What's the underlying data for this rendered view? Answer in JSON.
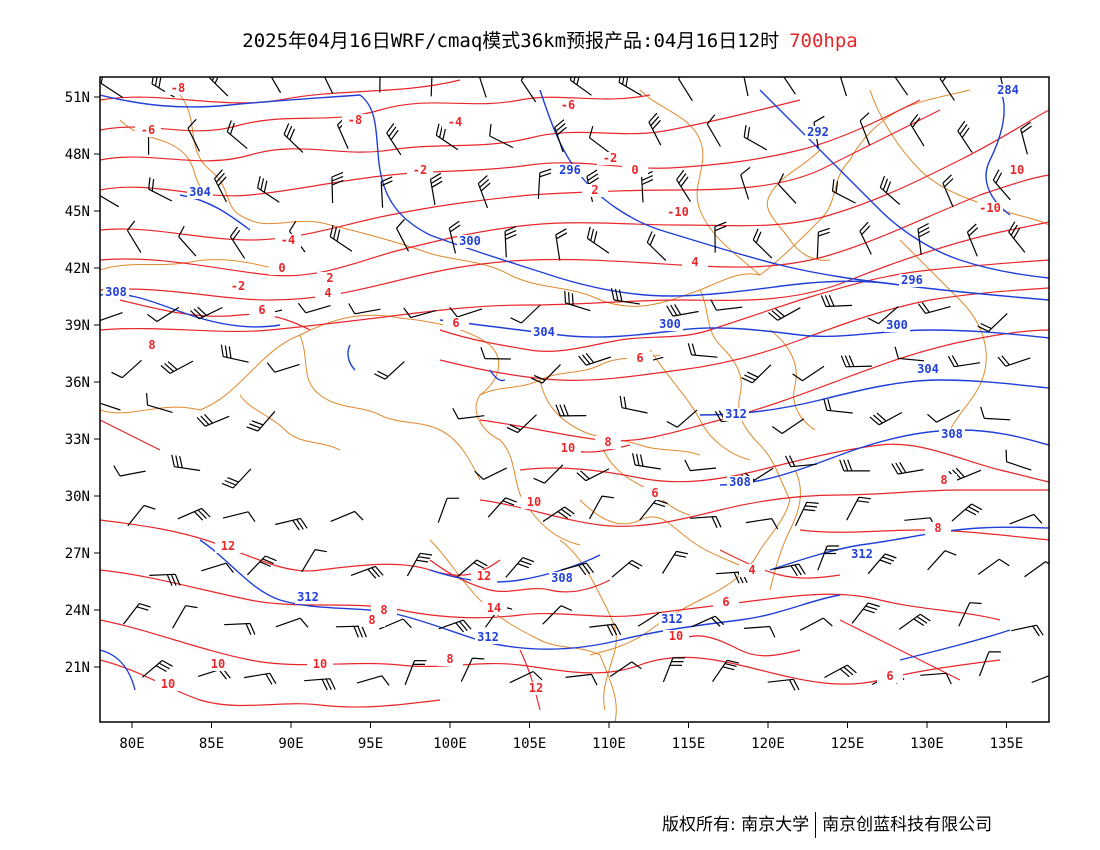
{
  "title": {
    "main": "2025年04月16日WRF/cmaq模式36km预报产品:04月16日12时",
    "level": "700hpa",
    "level_color": "#e8262a"
  },
  "axes": {
    "lon_labels": [
      "80E",
      "85E",
      "90E",
      "95E",
      "100E",
      "105E",
      "110E",
      "115E",
      "120E",
      "125E",
      "130E",
      "135E"
    ],
    "lat_labels": [
      "51N",
      "48N",
      "45N",
      "42N",
      "39N",
      "36N",
      "33N",
      "30N",
      "27N",
      "24N",
      "21N"
    ]
  },
  "contours": {
    "temperature_color": "#e8262a",
    "height_color": "#1f3fd8",
    "border_color": "#e08a2e",
    "temperature_labels": [
      "-8",
      "-8",
      "-6",
      "-4",
      "-2",
      "-2",
      "0",
      "2",
      "-6",
      "-4",
      "-2",
      "0",
      "2",
      "4",
      "6",
      "8",
      "10",
      "-10",
      "-10",
      "4",
      "6",
      "6",
      "8",
      "10",
      "12",
      "14",
      "10",
      "12",
      "10",
      "8",
      "6",
      "4",
      "6",
      "8",
      "8",
      "10",
      "10",
      "12",
      "10",
      "8",
      "6",
      "8"
    ],
    "height_labels": [
      "284",
      "292",
      "296",
      "300",
      "304",
      "308",
      "300",
      "300",
      "304",
      "308",
      "312",
      "312",
      "312",
      "308",
      "296",
      "304",
      "308",
      "312",
      "312"
    ]
  },
  "footer": {
    "copyright": "版权所有: 南京大学",
    "company": "南京创蓝科技有限公司"
  }
}
